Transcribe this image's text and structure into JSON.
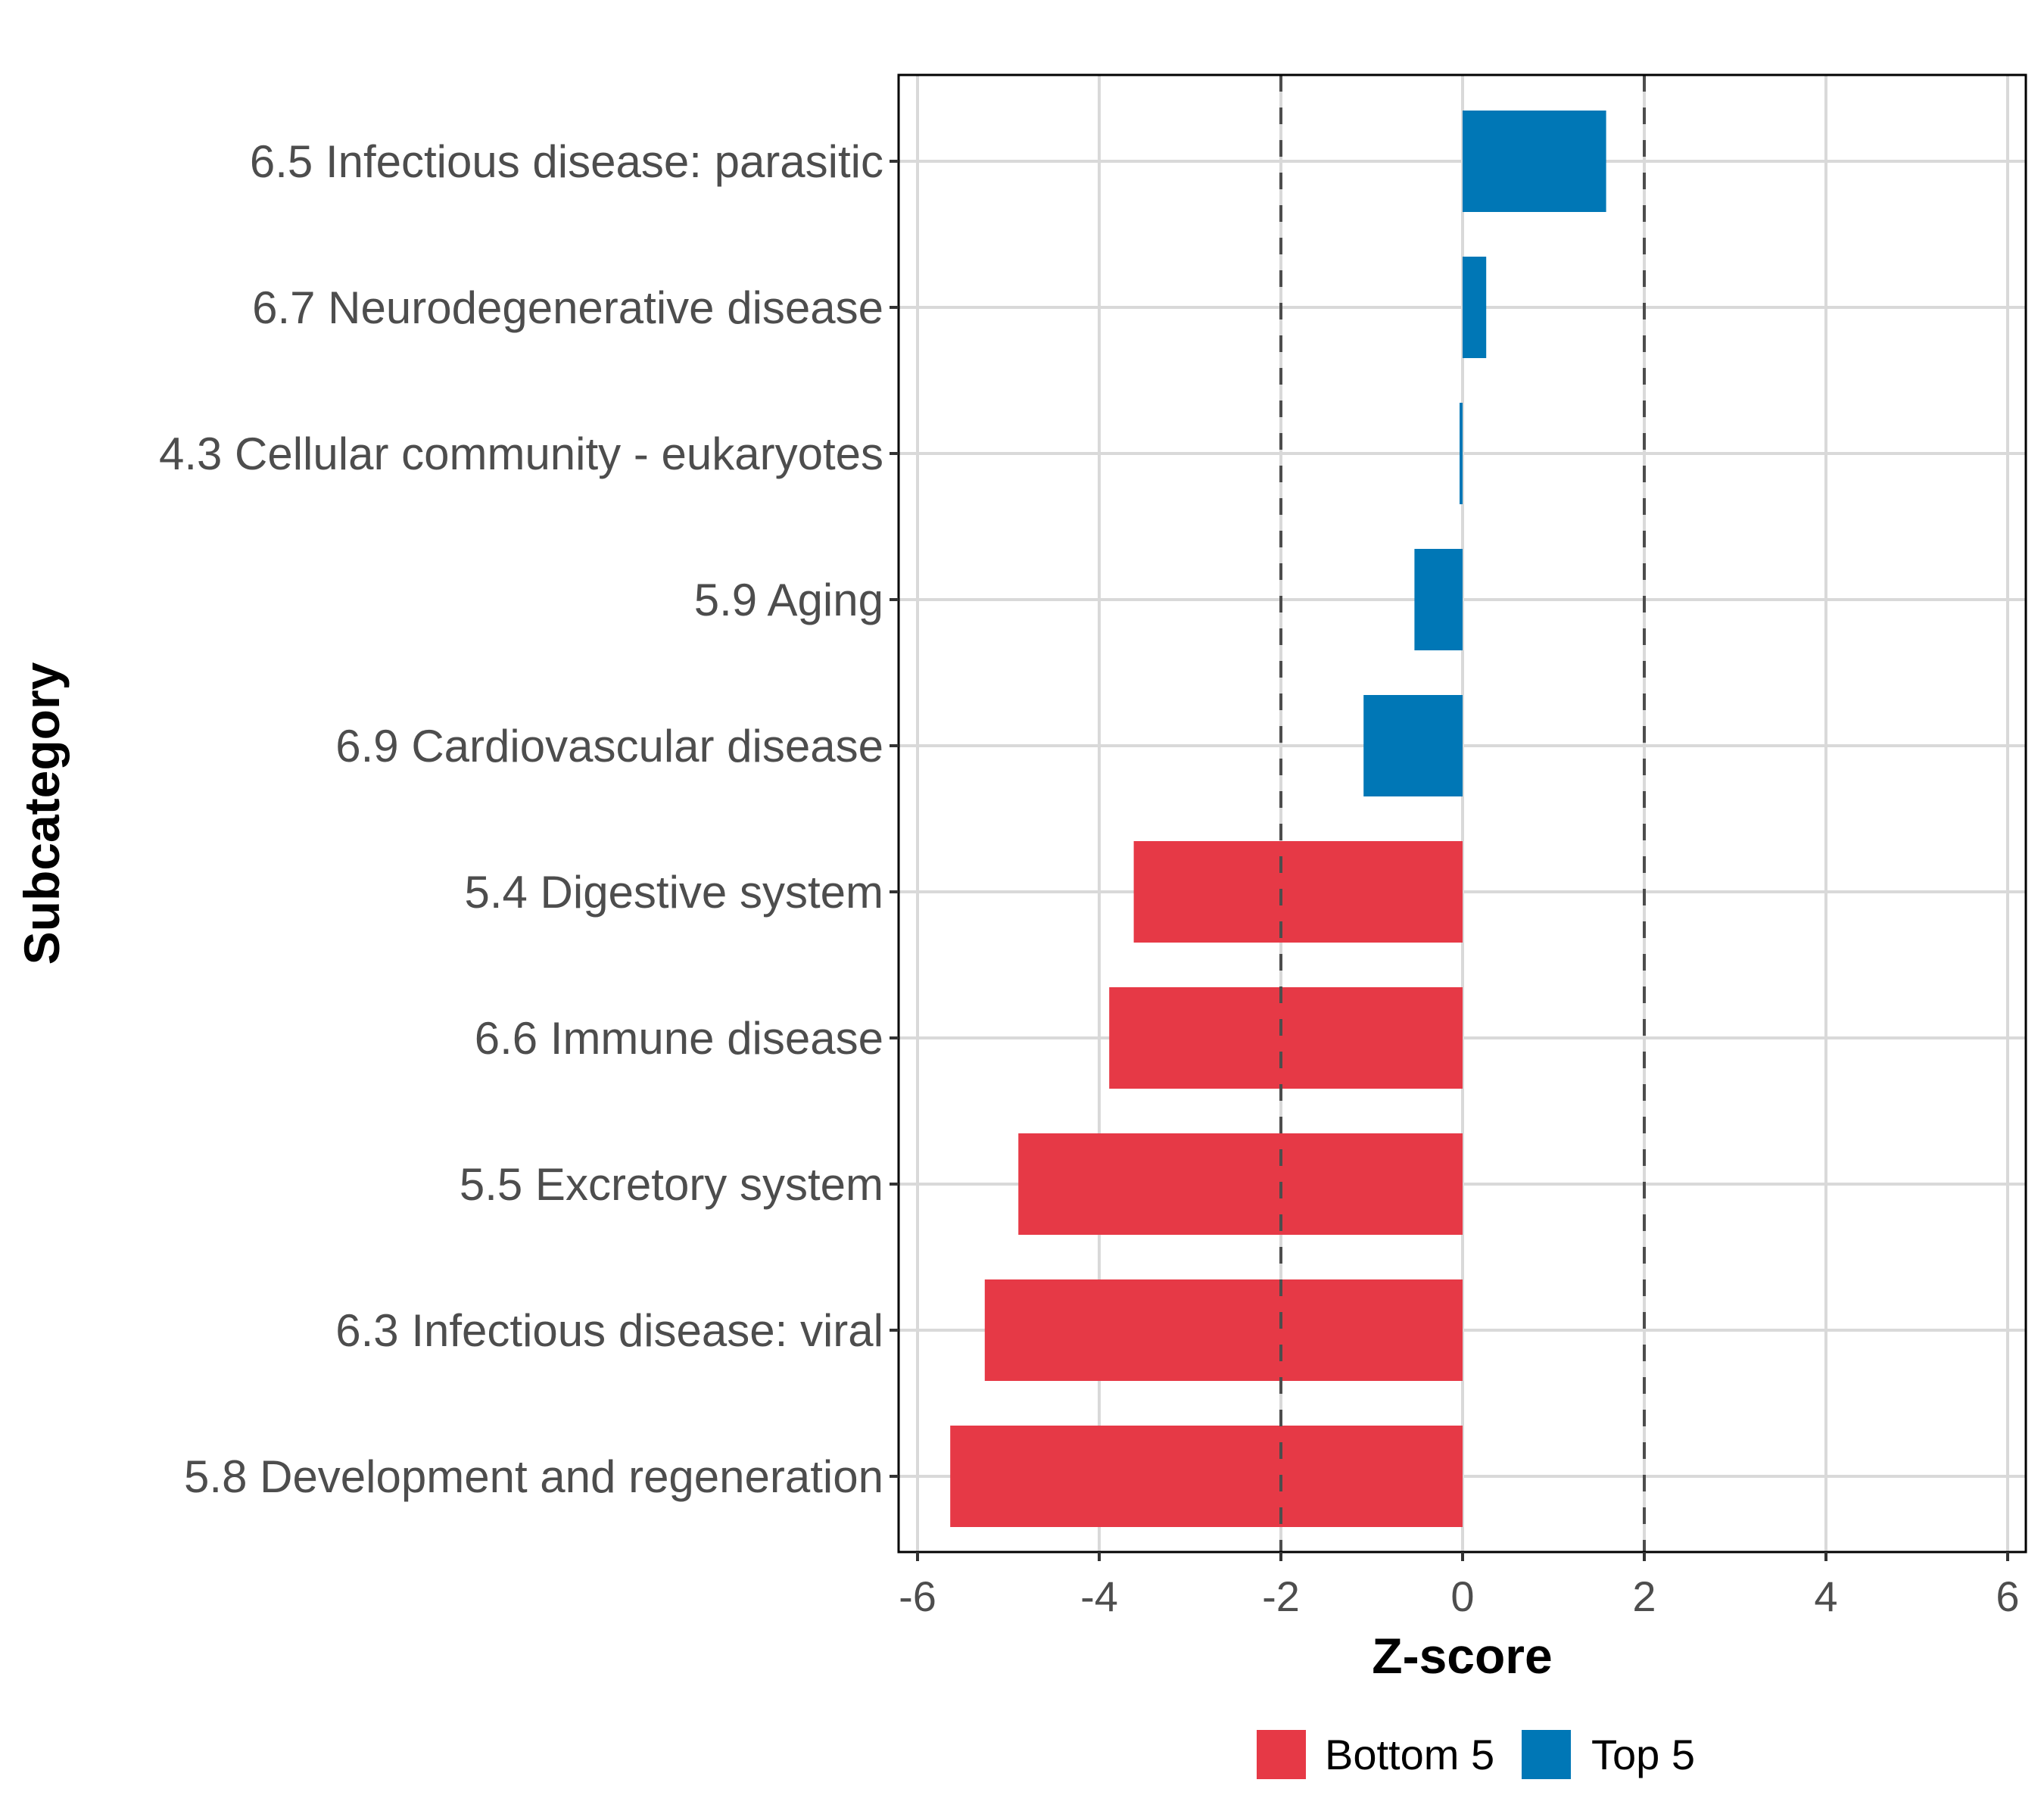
{
  "chart_data": {
    "type": "bar",
    "orientation": "horizontal",
    "title": "",
    "xlabel": "Z-score",
    "ylabel": "Subcategory",
    "xlim": [
      -6.2,
      6.2
    ],
    "xticks": [
      -6,
      -4,
      -2,
      0,
      2,
      4,
      6
    ],
    "xtick_labels": [
      "-6",
      "-4",
      "-2",
      "0",
      "2",
      "4",
      "6"
    ],
    "grid": true,
    "reference_lines": [
      -2,
      2
    ],
    "reference_line_style": "dashed",
    "legend_position": "bottom",
    "categories": [
      "6.5 Infectious disease: parasitic",
      "6.7 Neurodegenerative disease",
      "4.3 Cellular community - eukaryotes",
      "5.9 Aging",
      "6.9 Cardiovascular disease",
      "5.4 Digestive system",
      "6.6 Immune disease",
      "5.5 Excretory system",
      "6.3 Infectious disease: viral",
      "5.8 Development and regeneration"
    ],
    "values": [
      1.58,
      0.26,
      -0.03,
      -0.53,
      -1.09,
      -3.62,
      -3.89,
      -4.89,
      -5.26,
      -5.64
    ],
    "groups": [
      "Top 5",
      "Top 5",
      "Top 5",
      "Top 5",
      "Top 5",
      "Bottom 5",
      "Bottom 5",
      "Bottom 5",
      "Bottom 5",
      "Bottom 5"
    ],
    "legend": [
      {
        "name": "Bottom 5",
        "color": "#E63946"
      },
      {
        "name": "Top 5",
        "color": "#0077B6"
      }
    ]
  },
  "colors": {
    "Bottom 5": "#E63946",
    "Top 5": "#0077B6",
    "grid": "#d9d9d9",
    "reference_line": "#4d4d4d",
    "frame": "#000000"
  }
}
